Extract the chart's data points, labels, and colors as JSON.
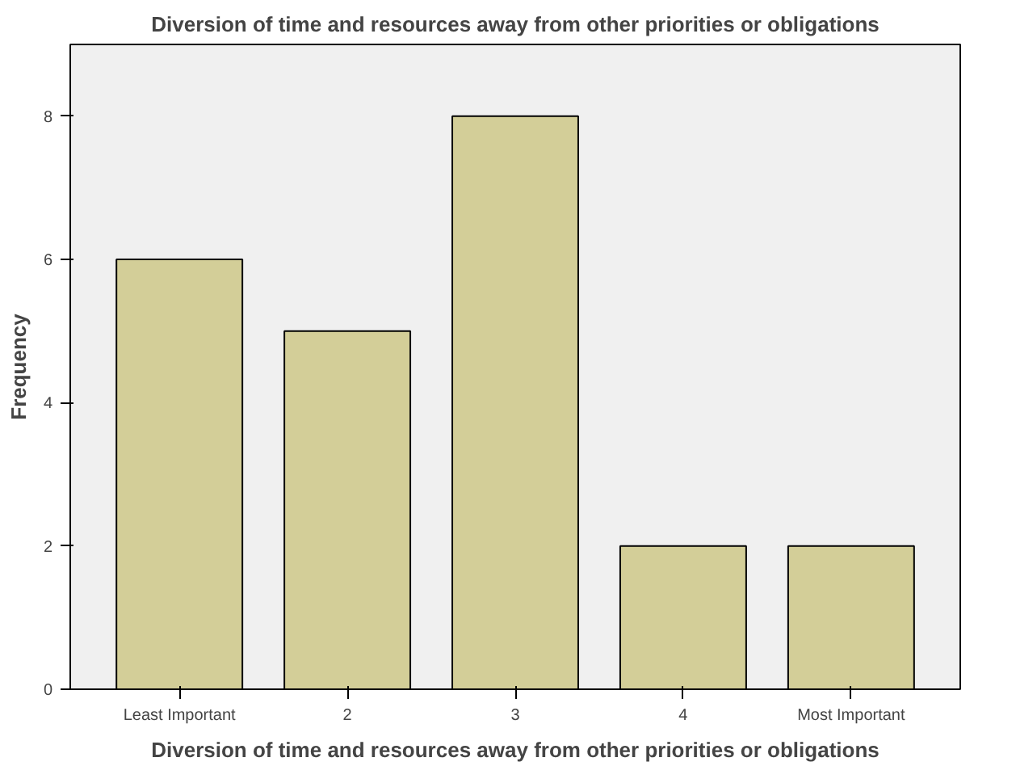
{
  "chart_data": {
    "type": "bar",
    "title": "Diversion of time and resources away from other priorities or obligations",
    "xlabel": "Diversion of time and resources away from other priorities or obligations",
    "ylabel": "Frequency",
    "categories": [
      "Least Important",
      "2",
      "3",
      "4",
      "Most Important"
    ],
    "values": [
      6,
      5,
      8,
      2,
      2
    ],
    "color": "#d3ce98",
    "ylim": [
      0,
      9
    ],
    "yticks": [
      0,
      2,
      4,
      6,
      8
    ],
    "grid": false
  }
}
